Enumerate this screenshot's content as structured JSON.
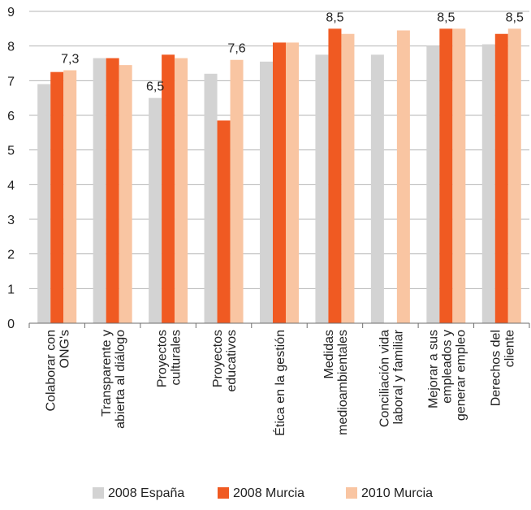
{
  "chart_data": {
    "type": "bar",
    "ylim": [
      0,
      9
    ],
    "y_ticks": [
      "0",
      "1",
      "2",
      "3",
      "4",
      "5",
      "6",
      "7",
      "8",
      "9"
    ],
    "grid": true,
    "legend_position": "bottom",
    "categories": [
      [
        "Colaborar con",
        "ONG's"
      ],
      [
        "Transparente y",
        "abierta al diálogo"
      ],
      [
        "Proyectos",
        "culturales"
      ],
      [
        "Proyectos",
        "educativos"
      ],
      [
        "Ética en la gestión"
      ],
      [
        "Medidas",
        "medioambientales"
      ],
      [
        "Conciliación vida",
        "laboral y familiar"
      ],
      [
        "Mejorar a sus",
        "empleados y",
        "generar empleo"
      ],
      [
        "Derechos del",
        "cliente"
      ]
    ],
    "series": [
      {
        "name": "2008 España",
        "color": "#d3d3d3",
        "values": [
          6.9,
          7.65,
          6.5,
          7.2,
          7.55,
          7.75,
          7.75,
          8.0,
          8.05
        ]
      },
      {
        "name": "2008 Murcia",
        "color": "#f05a22",
        "values": [
          7.25,
          7.65,
          7.75,
          5.85,
          8.1,
          8.5,
          null,
          8.5,
          8.35
        ]
      },
      {
        "name": "2010 Murcia",
        "color": "#f9c5a2",
        "values": [
          7.3,
          7.45,
          7.65,
          7.6,
          8.1,
          8.35,
          8.45,
          8.5,
          8.5
        ]
      }
    ],
    "data_labels": [
      {
        "category": 0,
        "series": 2,
        "text": "7,3"
      },
      {
        "category": 2,
        "series": 0,
        "text": "6,5"
      },
      {
        "category": 3,
        "series": 2,
        "text": "7,6"
      },
      {
        "category": 5,
        "series": 1,
        "text": "8,5"
      },
      {
        "category": 7,
        "series": 1,
        "text": "8,5"
      },
      {
        "category": 8,
        "series": 2,
        "text": "8,5"
      }
    ]
  }
}
